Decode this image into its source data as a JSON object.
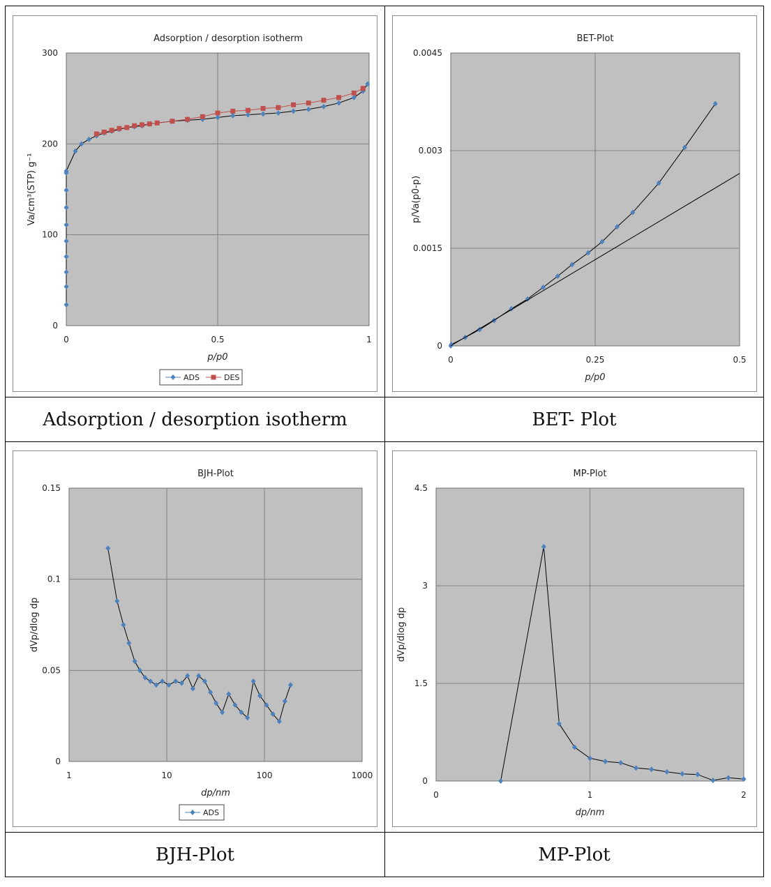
{
  "captions": [
    "Adsorption / desorption isotherm",
    "BET- Plot",
    "BJH-Plot",
    "MP-Plot"
  ],
  "colors": {
    "plot_bg": "#c0c0c0",
    "grid": "#808080",
    "ads_marker": "#4f81bd",
    "des_marker": "#c0504d",
    "line": "#000000"
  },
  "chart_data": [
    {
      "type": "line",
      "title": "Adsorption / desorption isotherm",
      "ylabel": "Va/cm³(STP) g⁻¹",
      "xlabel": "p/p0",
      "xlim": [
        0,
        1
      ],
      "ylim": [
        0,
        300
      ],
      "xticks": [
        0,
        0.5,
        1
      ],
      "yticks": [
        0,
        100,
        200,
        300
      ],
      "xtick_labels": [
        "0",
        "0.5",
        "1"
      ],
      "ytick_labels": [
        "0",
        "100",
        "200",
        "300"
      ],
      "legend": [
        "ADS",
        "DES"
      ],
      "series": [
        {
          "name": "ADS",
          "marker": "diamond",
          "x": [
            0.0,
            0.0,
            0.0,
            0.0,
            0.0,
            0.0,
            0.0,
            0.0,
            0.0,
            0.0,
            0.03,
            0.05,
            0.075,
            0.1,
            0.125,
            0.15,
            0.175,
            0.2,
            0.225,
            0.25,
            0.275,
            0.3,
            0.35,
            0.4,
            0.45,
            0.5,
            0.55,
            0.6,
            0.65,
            0.7,
            0.75,
            0.8,
            0.85,
            0.9,
            0.95,
            0.98,
            0.995
          ],
          "y": [
            23,
            43,
            59,
            76,
            93,
            111,
            130,
            149,
            168,
            170,
            192,
            200,
            205,
            209,
            212,
            214,
            216,
            218,
            219,
            220,
            222,
            223,
            225,
            226,
            227,
            229,
            231,
            232,
            233,
            234,
            236,
            238,
            241,
            245,
            251,
            258,
            266
          ]
        },
        {
          "name": "DES",
          "marker": "square",
          "x": [
            0.1,
            0.125,
            0.15,
            0.175,
            0.2,
            0.225,
            0.25,
            0.275,
            0.3,
            0.35,
            0.4,
            0.45,
            0.5,
            0.55,
            0.6,
            0.65,
            0.7,
            0.75,
            0.8,
            0.85,
            0.9,
            0.95,
            0.98
          ],
          "y": [
            211,
            213,
            215,
            217,
            218,
            220,
            221,
            222,
            223,
            225,
            227,
            230,
            234,
            236,
            237,
            239,
            240,
            243,
            245,
            248,
            251,
            256,
            261
          ]
        }
      ]
    },
    {
      "type": "line",
      "title": "BET-Plot",
      "ylabel": "p/Va(p0-p)",
      "xlabel": "p/p0",
      "xlim": [
        0,
        0.5
      ],
      "ylim": [
        0,
        0.0045
      ],
      "xticks": [
        0,
        0.25,
        0.5
      ],
      "yticks": [
        0,
        0.0015,
        0.003,
        0.0045
      ],
      "xtick_labels": [
        "0",
        "0.25",
        "0.5"
      ],
      "ytick_labels": [
        "0",
        "0.0015",
        "0.003",
        "0.0045"
      ],
      "series": [
        {
          "name": "data",
          "marker": "diamond",
          "x": [
            0.0,
            0.001,
            0.025,
            0.05,
            0.075,
            0.105,
            0.133,
            0.16,
            0.185,
            0.21,
            0.238,
            0.262,
            0.288,
            0.315,
            0.36,
            0.405,
            0.458
          ],
          "y": [
            0.0,
            2e-05,
            0.00013,
            0.00025,
            0.00039,
            0.00057,
            0.00072,
            0.0009,
            0.00107,
            0.00125,
            0.00143,
            0.0016,
            0.00183,
            0.00205,
            0.0025,
            0.00305,
            0.00372
          ]
        },
        {
          "name": "fit",
          "marker": "none",
          "x": [
            0,
            0.5
          ],
          "y": [
            0,
            0.00265
          ]
        }
      ]
    },
    {
      "type": "line",
      "title": "BJH-Plot",
      "ylabel": "dVp/dlog dp",
      "xlabel": "dp/nm",
      "xscale": "log",
      "xlim": [
        1,
        1000
      ],
      "ylim": [
        0,
        0.15
      ],
      "xticks": [
        1,
        10,
        100,
        1000
      ],
      "yticks": [
        0,
        0.05,
        0.1,
        0.15
      ],
      "xtick_labels": [
        "1",
        "10",
        "100",
        "1000"
      ],
      "ytick_labels": [
        "0",
        "0.05",
        "0.1",
        "0.15"
      ],
      "legend": [
        "ADS"
      ],
      "series": [
        {
          "name": "ADS",
          "marker": "diamond",
          "x": [
            2.5,
            3.1,
            3.6,
            4.1,
            4.7,
            5.3,
            6.0,
            6.8,
            7.8,
            9.0,
            10.5,
            12.3,
            14.2,
            16.3,
            18.5,
            21.2,
            24.5,
            28.0,
            32.0,
            37.0,
            43.0,
            50.0,
            58.0,
            67.0,
            77.0,
            90.0,
            105.0,
            122.0,
            142.0,
            162.0,
            185.0
          ],
          "y": [
            0.117,
            0.088,
            0.075,
            0.065,
            0.055,
            0.05,
            0.046,
            0.044,
            0.042,
            0.044,
            0.042,
            0.044,
            0.043,
            0.047,
            0.04,
            0.047,
            0.044,
            0.038,
            0.032,
            0.027,
            0.037,
            0.031,
            0.027,
            0.024,
            0.044,
            0.036,
            0.031,
            0.026,
            0.022,
            0.033,
            0.042
          ]
        }
      ]
    },
    {
      "type": "line",
      "title": "MP-Plot",
      "ylabel": "dVp/dlog dp",
      "xlabel": "dp/nm",
      "xlim": [
        0,
        2
      ],
      "ylim": [
        0,
        4.5
      ],
      "xticks": [
        0,
        1,
        2
      ],
      "yticks": [
        0,
        1.5,
        3,
        4.5
      ],
      "xtick_labels": [
        "0",
        "1",
        "2"
      ],
      "ytick_labels": [
        "0",
        "1.5",
        "3",
        "4.5"
      ],
      "series": [
        {
          "name": "data",
          "marker": "diamond",
          "x": [
            0.42,
            0.7,
            0.8,
            0.9,
            1.0,
            1.1,
            1.2,
            1.3,
            1.4,
            1.5,
            1.6,
            1.7,
            1.8,
            1.9,
            2.0
          ],
          "y": [
            0.0,
            3.6,
            0.88,
            0.52,
            0.35,
            0.3,
            0.28,
            0.2,
            0.18,
            0.14,
            0.11,
            0.1,
            0.01,
            0.05,
            0.03
          ]
        }
      ]
    }
  ]
}
